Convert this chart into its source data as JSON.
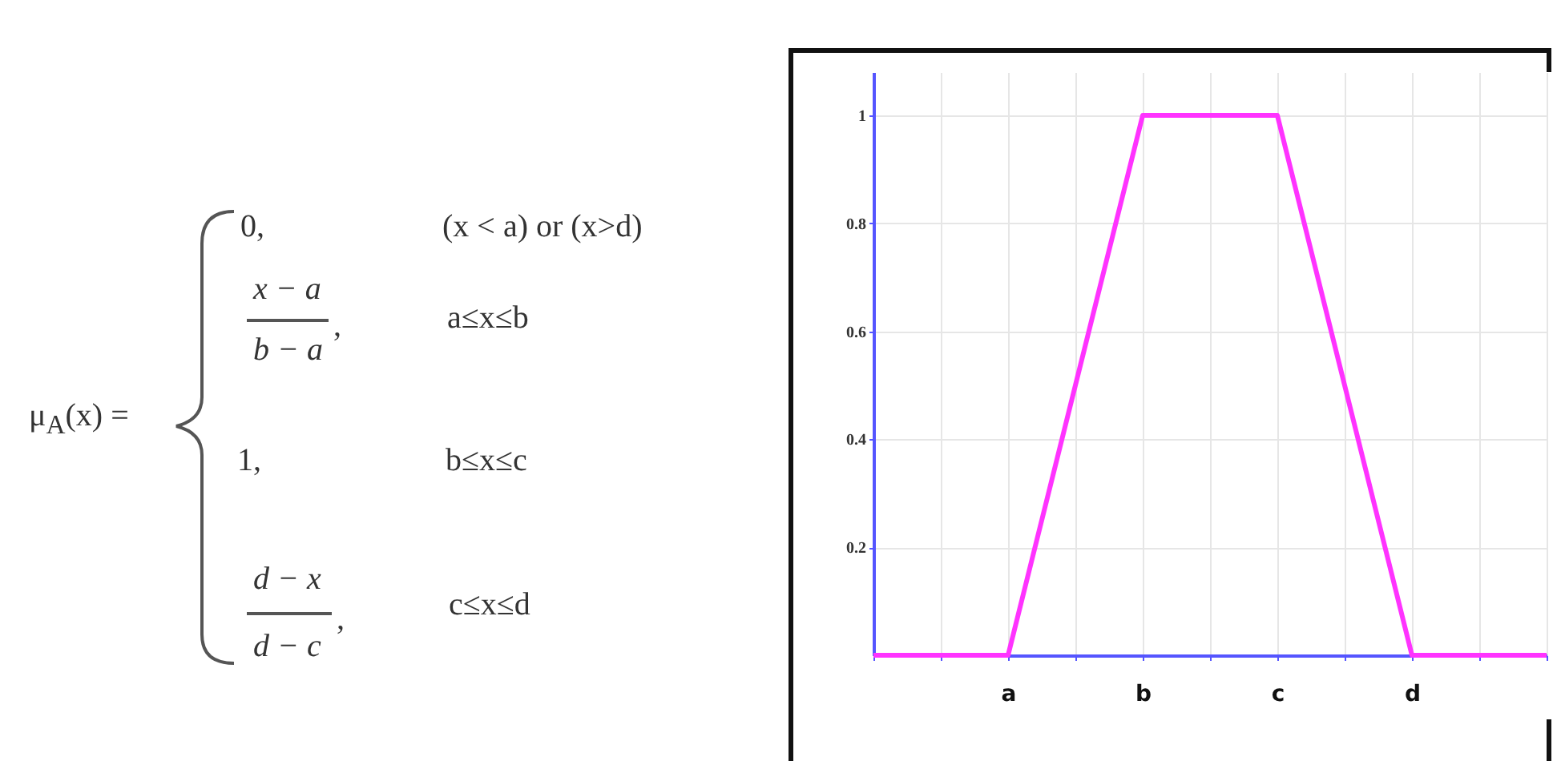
{
  "chart_data": [
    {
      "type": "other",
      "annotations": [
        "μ$_{A}$(x) =",
        "0,",
        "(x < a) or (x>d)",
        "x − a",
        "b − a",
        ",",
        "a≤x≤b",
        "1,",
        "b≤x≤c",
        "d − x",
        "d − c",
        ",",
        "c≤x≤d"
      ]
    },
    {
      "type": "line",
      "categories": [
        null,
        null,
        "a",
        null,
        "b",
        null,
        "c",
        null,
        "d",
        null,
        null
      ],
      "series": [
        {
          "color": "#ff33ff",
          "values": [
            0,
            0,
            0,
            0.5,
            1,
            1,
            1,
            0.5,
            0,
            0,
            0
          ]
        }
      ],
      "ylim": [
        0,
        1.08
      ],
      "yticks": [
        0.2,
        0.4,
        0.6,
        0.8,
        1
      ],
      "grid": true
    }
  ]
}
